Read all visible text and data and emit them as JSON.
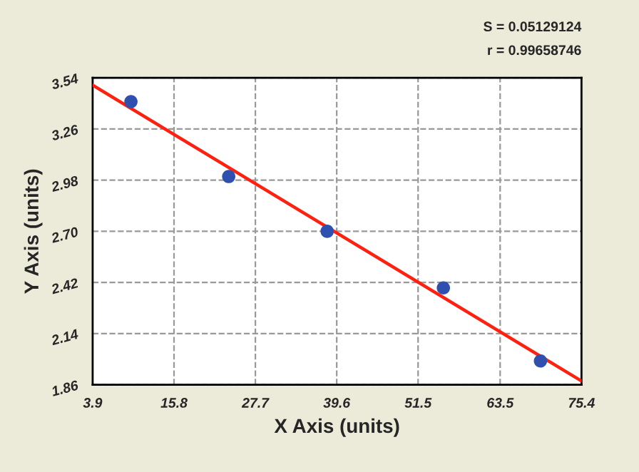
{
  "chart_data": {
    "type": "scatter",
    "xlabel": "X Axis (units)",
    "ylabel": "Y Axis (units)",
    "annotations": [
      "S = 0.05129124",
      "r = 0.99658746"
    ],
    "series": [
      {
        "color": "#3050b0",
        "x": [
          9.5,
          23.8,
          38.2,
          55.2,
          69.4
        ],
        "values": [
          3.41,
          3.0,
          2.7,
          2.39,
          1.99
        ],
        "marker": "circle"
      },
      {
        "type": "line",
        "color": "#ff2010",
        "x": [
          3.9,
          75.4
        ],
        "values": [
          3.5,
          1.88
        ],
        "line_style": "solid"
      }
    ],
    "xlim": [
      3.9,
      75.4
    ],
    "xticks": [
      3.9,
      15.8,
      27.7,
      39.6,
      51.5,
      63.5,
      75.4
    ],
    "ylim": [
      1.86,
      3.54
    ],
    "yticks": [
      1.86,
      2.14,
      2.42,
      {
        "value": 2.7,
        "label": "2.70"
      },
      2.98,
      3.26,
      3.54
    ],
    "grid": true
  }
}
